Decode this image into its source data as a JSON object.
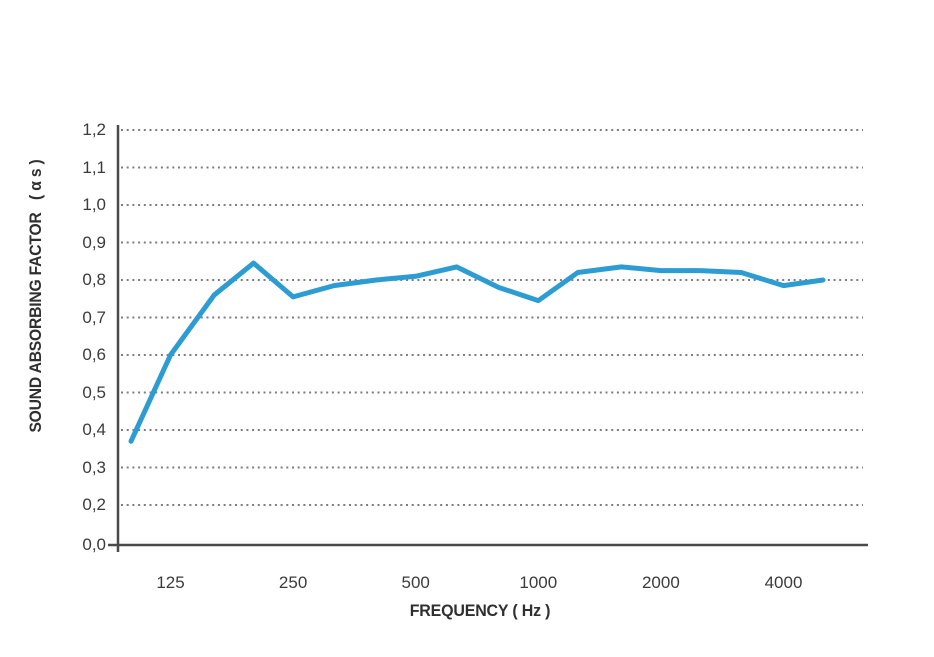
{
  "chart_data": {
    "type": "line",
    "xlabel": "FREQUENCY ( Hz )",
    "ylabel": "SOUND ABSORBING FACTOR   ( α s )",
    "x_scale": "log2",
    "x": [
      100,
      125,
      160,
      200,
      250,
      315,
      400,
      500,
      630,
      800,
      1000,
      1250,
      1600,
      2000,
      2500,
      3150,
      4000,
      5000
    ],
    "series": [
      {
        "name": "sound absorbing factor",
        "values": [
          0.37,
          0.6,
          0.76,
          0.845,
          0.755,
          0.785,
          0.8,
          0.81,
          0.835,
          0.78,
          0.745,
          0.82,
          0.835,
          0.825,
          0.825,
          0.82,
          0.785,
          0.8
        ]
      }
    ],
    "x_ticks": [
      {
        "label": "125",
        "value": 125
      },
      {
        "label": "250",
        "value": 250
      },
      {
        "label": "500",
        "value": 500
      },
      {
        "label": "1000",
        "value": 1000
      },
      {
        "label": "2000",
        "value": 2000
      },
      {
        "label": "4000",
        "value": 4000
      }
    ],
    "y_ticks": [
      {
        "label": "1,2",
        "value": 1.2,
        "gridline": true
      },
      {
        "label": "1,1",
        "value": 1.1,
        "gridline": true
      },
      {
        "label": "1,0",
        "value": 1.0,
        "gridline": true
      },
      {
        "label": "0,9",
        "value": 0.9,
        "gridline": true
      },
      {
        "label": "0,8",
        "value": 0.8,
        "gridline": true
      },
      {
        "label": "0,7",
        "value": 0.7,
        "gridline": true
      },
      {
        "label": "0,6",
        "value": 0.6,
        "gridline": true
      },
      {
        "label": "0,5",
        "value": 0.5,
        "gridline": true
      },
      {
        "label": "0,4",
        "value": 0.4,
        "gridline": true
      },
      {
        "label": "0,3",
        "value": 0.3,
        "gridline": true
      },
      {
        "label": "0,2",
        "value": 0.2,
        "gridline": true
      },
      {
        "label": "0,0",
        "value": 0.0,
        "gridline": false
      }
    ],
    "ylim": [
      0.0,
      1.2
    ],
    "grid": "dotted-horizontal",
    "legend": "none",
    "colors": {
      "line": "#2D9CD3",
      "grid": "#7d7d7d",
      "axis": "#4a4a4a",
      "text": "#3b3b3b"
    }
  }
}
